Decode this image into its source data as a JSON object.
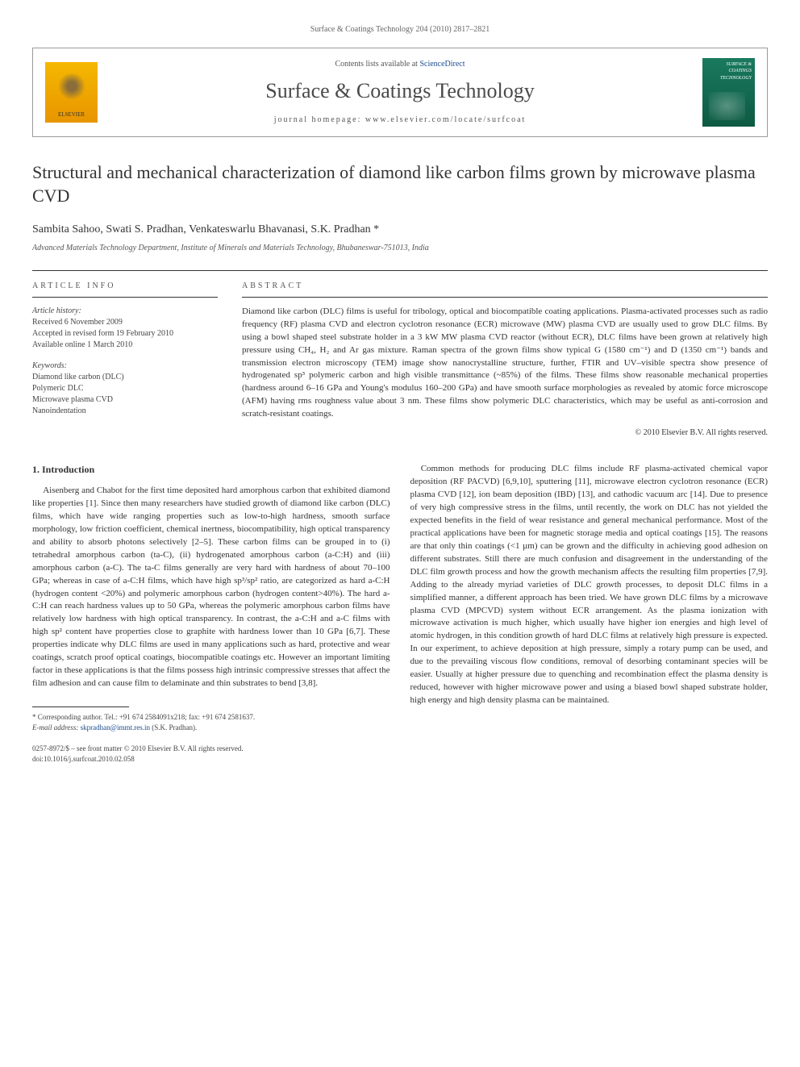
{
  "page_header": "Surface & Coatings Technology 204 (2010) 2817–2821",
  "masthead": {
    "contents_prefix": "Contents lists available at ",
    "contents_link": "ScienceDirect",
    "journal_name": "Surface & Coatings Technology",
    "homepage_prefix": "journal homepage: ",
    "homepage_url": "www.elsevier.com/locate/surfcoat",
    "elsevier_label": "ELSEVIER",
    "cover_text": "SURFACE & COATINGS TECHNOLOGY"
  },
  "article": {
    "title": "Structural and mechanical characterization of diamond like carbon films grown by microwave plasma CVD",
    "authors": "Sambita Sahoo, Swati S. Pradhan, Venkateswarlu Bhavanasi, S.K. Pradhan *",
    "affiliation": "Advanced Materials Technology Department, Institute of Minerals and Materials Technology, Bhubaneswar-751013, India"
  },
  "info": {
    "section_label": "article info",
    "history_head": "Article history:",
    "received": "Received 6 November 2009",
    "accepted": "Accepted in revised form 19 February 2010",
    "online": "Available online 1 March 2010",
    "keywords_head": "Keywords:",
    "kw1": "Diamond like carbon (DLC)",
    "kw2": "Polymeric DLC",
    "kw3": "Microwave plasma CVD",
    "kw4": "Nanoindentation"
  },
  "abstract": {
    "section_label": "abstract",
    "text": "Diamond like carbon (DLC) films is useful for tribology, optical and biocompatible coating applications. Plasma-activated processes such as radio frequency (RF) plasma CVD and electron cyclotron resonance (ECR) microwave (MW) plasma CVD are usually used to grow DLC films. By using a bowl shaped steel substrate holder in a 3 kW MW plasma CVD reactor (without ECR), DLC films have been grown at relatively high pressure using CH₄, H₂ and Ar gas mixture. Raman spectra of the grown films show typical G (1580 cm⁻¹) and D (1350 cm⁻¹) bands and transmission electron microscopy (TEM) image show nanocrystalline structure, further, FTIR and UV–visible spectra show presence of hydrogenated sp³ polymeric carbon and high visible transmittance (~85%) of the films. These films show reasonable mechanical properties (hardness around 6–16 GPa and Young's modulus 160–200 GPa) and have smooth surface morphologies as revealed by atomic force microscope (AFM) having rms roughness value about 3 nm. These films show polymeric DLC characteristics, which may be useful as anti-corrosion and scratch-resistant coatings.",
    "copyright": "© 2010 Elsevier B.V. All rights reserved."
  },
  "body": {
    "intro_heading": "1. Introduction",
    "col1": "Aisenberg and Chabot for the first time deposited hard amorphous carbon that exhibited diamond like properties [1]. Since then many researchers have studied growth of diamond like carbon (DLC) films, which have wide ranging properties such as low-to-high hardness, smooth surface morphology, low friction coefficient, chemical inertness, biocompatibility, high optical transparency and ability to absorb photons selectively [2–5]. These carbon films can be grouped in to (i) tetrahedral amorphous carbon (ta-C), (ii) hydrogenated amorphous carbon (a-C:H) and (iii) amorphous carbon (a-C). The ta-C films generally are very hard with hardness of about 70–100 GPa; whereas in case of a-C:H films, which have high sp³/sp² ratio, are categorized as hard a-C:H (hydrogen content <20%) and polymeric amorphous carbon (hydrogen content>40%). The hard a-C:H can reach hardness values up to 50 GPa, whereas the polymeric amorphous carbon films have relatively low hardness with high optical transparency. In contrast, the a-C:H and a-C films with high sp² content have properties close to graphite with hardness lower than 10 GPa [6,7]. These properties indicate why DLC films are used in many applications such as hard, protective and wear coatings, scratch proof optical coatings, biocompatible coatings etc. However an important limiting factor in these applications is that the films possess high intrinsic compressive stresses that affect the film adhesion and can cause film to delaminate and thin substrates to bend [3,8].",
    "col2": "Common methods for producing DLC films include RF plasma-activated chemical vapor deposition (RF PACVD) [6,9,10], sputtering [11], microwave electron cyclotron resonance (ECR) plasma CVD [12], ion beam deposition (IBD) [13], and cathodic vacuum arc [14]. Due to presence of very high compressive stress in the films, until recently, the work on DLC has not yielded the expected benefits in the field of wear resistance and general mechanical performance. Most of the practical applications have been for magnetic storage media and optical coatings [15]. The reasons are that only thin coatings (<1 µm) can be grown and the difficulty in achieving good adhesion on different substrates. Still there are much confusion and disagreement in the understanding of the DLC film growth process and how the growth mechanism affects the resulting film properties [7,9]. Adding to the already myriad varieties of DLC growth processes, to deposit DLC films in a simplified manner, a different approach has been tried. We have grown DLC films by a microwave plasma CVD (MPCVD) system without ECR arrangement. As the plasma ionization with microwave activation is much higher, which usually have higher ion energies and high level of atomic hydrogen, in this condition growth of hard DLC films at relatively high pressure is expected. In our experiment, to achieve deposition at high pressure, simply a rotary pump can be used, and due to the prevailing viscous flow conditions, removal of desorbing contaminant species will be easier. Usually at higher pressure due to quenching and recombination effect the plasma density is reduced, however with higher microwave power and using a biased bowl shaped substrate holder, high energy and high density plasma can be maintained."
  },
  "footnote": {
    "corr": "* Corresponding author. Tel.: +91 674 2584091x218; fax: +91 674 2581637.",
    "email_label": "E-mail address: ",
    "email": "skpradhan@immt.res.in",
    "email_suffix": " (S.K. Pradhan)."
  },
  "footer": {
    "line1": "0257-8972/$ – see front matter © 2010 Elsevier B.V. All rights reserved.",
    "line2": "doi:10.1016/j.surfcoat.2010.02.058"
  }
}
